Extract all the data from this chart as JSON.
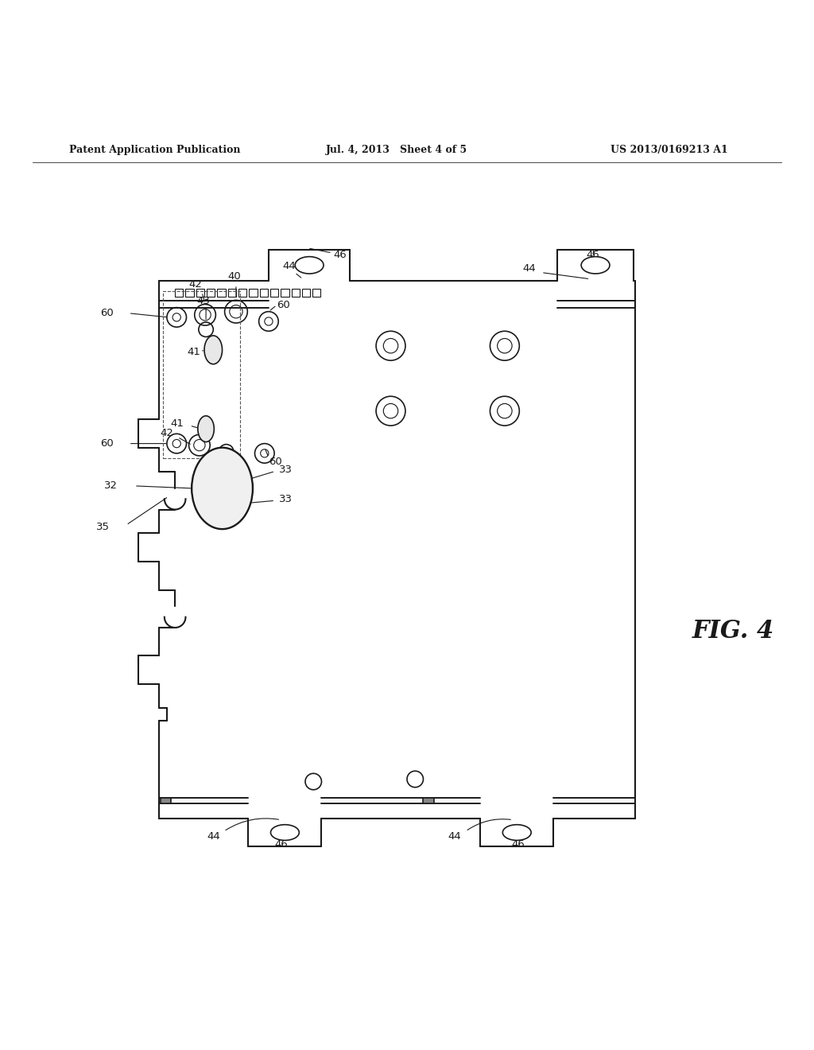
{
  "title_left": "Patent Application Publication",
  "title_mid": "Jul. 4, 2013   Sheet 4 of 5",
  "title_right": "US 2013/0169213 A1",
  "fig_label": "FIG. 4",
  "bg_color": "#ffffff",
  "line_color": "#1a1a1a",
  "text_color": "#1a1a1a"
}
